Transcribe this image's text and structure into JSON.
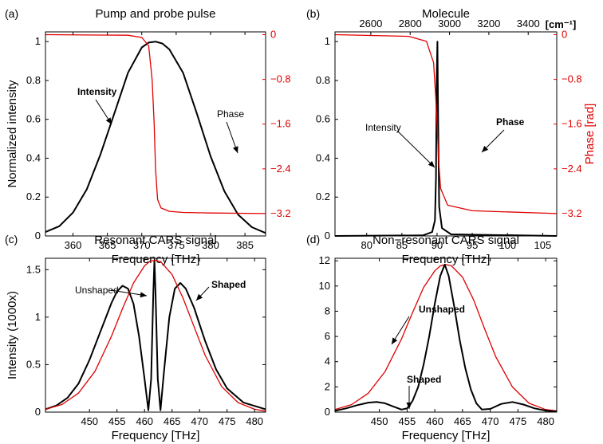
{
  "colors": {
    "black": "#000000",
    "red": "#e00000"
  },
  "chart_data": [
    {
      "panel": "(a)",
      "type": "line",
      "title": "Pump and probe pulse",
      "xlabel": "Frequency [THz]",
      "ylabel": "Normalized intensity",
      "y2label": "",
      "xlim": [
        356,
        388
      ],
      "ylim": [
        0,
        1.05
      ],
      "y2lim": [
        -3.6,
        0.05
      ],
      "xticks": [
        360,
        365,
        370,
        375,
        380,
        385
      ],
      "yticks": [
        0,
        0.2,
        0.4,
        0.6,
        0.8,
        1
      ],
      "y2ticks": [
        0,
        -0.8,
        -1.6,
        -2.4,
        -3.2
      ],
      "y2tick_labels": [
        "0",
        "−0.8",
        "−1.6",
        "−2.4",
        "−3.2"
      ],
      "annotations": [
        "Intensity",
        "Phase"
      ],
      "series": [
        {
          "name": "Intensity",
          "axis": "left",
          "color": "#000000",
          "x": [
            356,
            358,
            360,
            362,
            364,
            366,
            368,
            370,
            371,
            372,
            373,
            374,
            376,
            378,
            380,
            382,
            384,
            386,
            388
          ],
          "y": [
            0.02,
            0.05,
            0.12,
            0.24,
            0.42,
            0.63,
            0.84,
            0.97,
            0.995,
            1.0,
            0.99,
            0.96,
            0.84,
            0.63,
            0.41,
            0.23,
            0.11,
            0.045,
            0.015
          ]
        },
        {
          "name": "Phase",
          "axis": "right",
          "color": "#e00000",
          "x": [
            356,
            368,
            370,
            371,
            371.5,
            371.8,
            372,
            372.3,
            372.8,
            374,
            376,
            380,
            388
          ],
          "y": [
            0,
            -0.01,
            -0.05,
            -0.2,
            -0.8,
            -1.6,
            -2.4,
            -2.95,
            -3.1,
            -3.16,
            -3.18,
            -3.19,
            -3.2
          ]
        }
      ]
    },
    {
      "panel": "(b)",
      "type": "line",
      "title": "Molecule",
      "xlabel": "Frequency [THz]",
      "ylabel": "",
      "y2label": "Phase [rad]",
      "top_xlabel": "[cm⁻¹]",
      "xlim": [
        75.5,
        107
      ],
      "ylim": [
        0,
        1.05
      ],
      "y2lim": [
        -3.6,
        0.05
      ],
      "xticks": [
        80,
        85,
        90,
        95,
        100,
        105
      ],
      "yticks": [
        0,
        0.2,
        0.4,
        0.6,
        0.8,
        1
      ],
      "y2ticks": [
        0,
        -0.8,
        -1.6,
        -2.4,
        -3.2
      ],
      "y2tick_labels": [
        "0",
        "−0.8",
        "−1.6",
        "−2.4",
        "−3.2"
      ],
      "top_xticks": [
        2600,
        2800,
        3000,
        3200,
        3400
      ],
      "annotations": [
        "Intensity",
        "Phase"
      ],
      "series": [
        {
          "name": "Intensity",
          "axis": "left",
          "color": "#000000",
          "x": [
            75.5,
            88,
            89.3,
            89.7,
            89.85,
            89.95,
            90.05,
            90.15,
            90.3,
            90.7,
            92,
            107
          ],
          "y": [
            0,
            0.003,
            0.02,
            0.08,
            0.3,
            0.8,
            1.0,
            0.6,
            0.15,
            0.04,
            0.008,
            0
          ]
        },
        {
          "name": "Phase",
          "axis": "right",
          "color": "#e00000",
          "x": [
            75.5,
            86,
            88.5,
            89.5,
            89.8,
            90,
            90.2,
            90.5,
            91.5,
            95,
            107
          ],
          "y": [
            0,
            -0.03,
            -0.12,
            -0.5,
            -1.1,
            -1.6,
            -2.2,
            -2.75,
            -3.05,
            -3.15,
            -3.2
          ]
        }
      ]
    },
    {
      "panel": "(c)",
      "type": "line",
      "title": "Resonant CARS signal",
      "xlabel": "Frequency [THz]",
      "ylabel": "Intensity (1000x)",
      "xlim": [
        442,
        482
      ],
      "ylim": [
        0,
        1.62
      ],
      "xticks": [
        450,
        455,
        460,
        465,
        470,
        475,
        480
      ],
      "yticks": [
        0,
        0.5,
        1,
        1.5
      ],
      "annotations": [
        "Unshaped",
        "Shaped"
      ],
      "series": [
        {
          "name": "Shaped",
          "color": "#000000",
          "x": [
            442,
            444,
            446,
            448,
            450,
            452,
            454,
            455,
            456,
            457,
            458,
            459,
            460,
            460.7,
            461.2,
            461.6,
            461.8,
            462.0,
            462.4,
            462.9,
            463.5,
            464.5,
            465.5,
            466.5,
            467.5,
            469,
            471,
            473,
            475,
            478,
            482
          ],
          "y": [
            0.03,
            0.07,
            0.15,
            0.3,
            0.55,
            0.85,
            1.15,
            1.27,
            1.33,
            1.3,
            1.14,
            0.8,
            0.35,
            0.02,
            0.35,
            1.25,
            1.6,
            1.25,
            0.35,
            0.02,
            0.4,
            1.0,
            1.3,
            1.36,
            1.3,
            1.1,
            0.75,
            0.45,
            0.25,
            0.1,
            0.03
          ]
        },
        {
          "name": "Unshaped",
          "color": "#e00000",
          "x": [
            442,
            445,
            448,
            451,
            454,
            456,
            458,
            460,
            461,
            462,
            463,
            465,
            467,
            469,
            471,
            474,
            477,
            480,
            482
          ],
          "y": [
            0.03,
            0.08,
            0.2,
            0.43,
            0.8,
            1.09,
            1.36,
            1.54,
            1.59,
            1.6,
            1.58,
            1.45,
            1.2,
            0.9,
            0.6,
            0.27,
            0.1,
            0.03,
            0.01
          ]
        }
      ]
    },
    {
      "panel": "(d)",
      "type": "line",
      "title": "Non−resonant CARS signal",
      "xlabel": "Frequency [THz]",
      "ylabel": "",
      "xlim": [
        442,
        482
      ],
      "ylim": [
        0,
        12.2
      ],
      "xticks": [
        450,
        455,
        460,
        465,
        470,
        475,
        480
      ],
      "yticks": [
        0,
        2,
        4,
        6,
        8,
        10,
        12
      ],
      "annotations": [
        "Unshaped",
        "Shaped"
      ],
      "series": [
        {
          "name": "Unshaped",
          "color": "#e00000",
          "x": [
            442,
            445,
            448,
            451,
            454,
            456,
            458,
            460,
            461,
            462,
            463,
            465,
            467,
            469,
            471,
            474,
            477,
            480,
            482
          ],
          "y": [
            0.2,
            0.6,
            1.5,
            3.2,
            5.8,
            7.9,
            9.9,
            11.2,
            11.6,
            11.7,
            11.6,
            10.7,
            8.9,
            6.6,
            4.4,
            2.0,
            0.7,
            0.2,
            0.1
          ]
        },
        {
          "name": "Shaped",
          "color": "#000000",
          "x": [
            442,
            444,
            446,
            448,
            449.5,
            451,
            452.5,
            454,
            455,
            456,
            457,
            458,
            459,
            460,
            461,
            461.8,
            462.5,
            463.5,
            464.5,
            465.5,
            466.5,
            467.5,
            468.5,
            470,
            472,
            474,
            476,
            478,
            480,
            482
          ],
          "y": [
            0.1,
            0.3,
            0.55,
            0.75,
            0.8,
            0.7,
            0.45,
            0.2,
            0.3,
            0.9,
            2.0,
            3.8,
            6.0,
            8.6,
            10.8,
            11.7,
            10.8,
            8.4,
            5.7,
            3.5,
            1.8,
            0.7,
            0.2,
            0.25,
            0.65,
            0.8,
            0.6,
            0.3,
            0.12,
            0.05
          ]
        }
      ]
    }
  ]
}
